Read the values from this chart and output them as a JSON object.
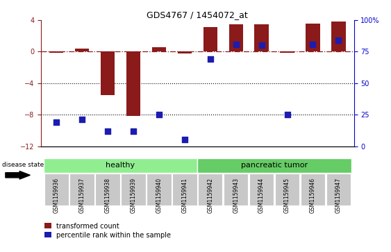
{
  "title": "GDS4767 / 1454072_at",
  "samples": [
    "GSM1159936",
    "GSM1159937",
    "GSM1159938",
    "GSM1159939",
    "GSM1159940",
    "GSM1159941",
    "GSM1159942",
    "GSM1159943",
    "GSM1159944",
    "GSM1159945",
    "GSM1159946",
    "GSM1159947"
  ],
  "red_values": [
    -0.15,
    0.35,
    -5.5,
    -8.2,
    0.55,
    -0.2,
    3.1,
    3.5,
    3.5,
    -0.15,
    3.6,
    3.8
  ],
  "blue_percentile": [
    19,
    21,
    12,
    12,
    25,
    5,
    69,
    81,
    80,
    25,
    81,
    84
  ],
  "groups": [
    {
      "label": "healthy",
      "start": 0,
      "end": 5,
      "color": "#90EE90"
    },
    {
      "label": "pancreatic tumor",
      "start": 6,
      "end": 11,
      "color": "#66CC66"
    }
  ],
  "ylim_left": [
    -12,
    4
  ],
  "ylim_right": [
    0,
    100
  ],
  "yticks_left": [
    4,
    0,
    -4,
    -8,
    -12
  ],
  "yticks_right": [
    100,
    75,
    50,
    25,
    0
  ],
  "red_color": "#8B1A1A",
  "blue_color": "#1C1CB0",
  "bar_width": 0.55,
  "legend_labels": [
    "transformed count",
    "percentile rank within the sample"
  ],
  "disease_state_label": "disease state",
  "dotted_lines": [
    -4,
    -8
  ],
  "sample_box_color": "#C8C8C8",
  "healthy_color": "#90EE90",
  "tumor_color": "#66CC66"
}
